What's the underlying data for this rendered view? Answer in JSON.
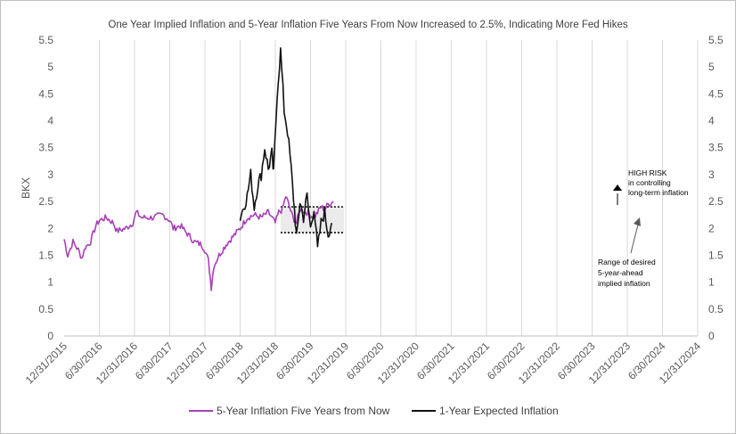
{
  "chart_data": {
    "type": "line",
    "title": "One Year Implied Inflation and 5-Year Inflation Five Years From Now Increased to 2.5%, Indicating More Fed Hikes",
    "ylabel": "BKX",
    "xlabel": "",
    "ylim": [
      0,
      5.5
    ],
    "y_ticks": [
      "0",
      "0.5",
      "1",
      "1.5",
      "2",
      "2.5",
      "3",
      "3.5",
      "4",
      "4.5",
      "5",
      "5.5"
    ],
    "x_ticks": [
      "12/31/2015",
      "6/30/2016",
      "12/31/2016",
      "6/30/2017",
      "12/31/2017",
      "6/30/2018",
      "12/31/2018",
      "6/30/2019",
      "12/31/2019",
      "6/30/2020",
      "12/31/2020",
      "6/30/2021",
      "12/31/2021",
      "6/30/2022",
      "12/31/2022",
      "6/30/2023",
      "12/31/2023",
      "6/30/2024",
      "12/31/2024"
    ],
    "grid": "vertical",
    "legend_position": "bottom",
    "series": [
      {
        "name": "5-Year Inflation Five Years from Now",
        "color": "#a83fb8",
        "points": [
          [
            0.0,
            1.8
          ],
          [
            0.1,
            1.5
          ],
          [
            0.25,
            1.75
          ],
          [
            0.4,
            1.6
          ],
          [
            0.5,
            1.45
          ],
          [
            0.6,
            1.65
          ],
          [
            0.75,
            1.75
          ],
          [
            0.9,
            2.05
          ],
          [
            1.0,
            2.15
          ],
          [
            1.2,
            2.2
          ],
          [
            1.4,
            2.1
          ],
          [
            1.5,
            1.95
          ],
          [
            1.75,
            2.0
          ],
          [
            1.95,
            2.1
          ],
          [
            2.05,
            2.3
          ],
          [
            2.2,
            2.2
          ],
          [
            2.5,
            2.2
          ],
          [
            2.8,
            2.25
          ],
          [
            3.0,
            2.15
          ],
          [
            3.1,
            2.0
          ],
          [
            3.3,
            2.05
          ],
          [
            3.5,
            1.9
          ],
          [
            3.7,
            1.75
          ],
          [
            3.9,
            1.7
          ],
          [
            4.0,
            1.6
          ],
          [
            4.1,
            1.4
          ],
          [
            4.18,
            0.9
          ],
          [
            4.25,
            1.3
          ],
          [
            4.4,
            1.5
          ],
          [
            4.6,
            1.7
          ],
          [
            4.8,
            1.85
          ],
          [
            5.0,
            2.0
          ],
          [
            5.2,
            2.2
          ],
          [
            5.4,
            2.25
          ],
          [
            5.6,
            2.2
          ],
          [
            5.8,
            2.3
          ],
          [
            6.0,
            2.1
          ],
          [
            6.1,
            2.3
          ],
          [
            6.2,
            2.35
          ],
          [
            6.3,
            2.6
          ],
          [
            6.4,
            2.4
          ],
          [
            6.5,
            2.2
          ],
          [
            6.6,
            2.1
          ],
          [
            6.7,
            2.35
          ],
          [
            6.9,
            2.3
          ],
          [
            7.1,
            2.2
          ],
          [
            7.3,
            2.4
          ],
          [
            7.4,
            2.35
          ],
          [
            7.5,
            2.45
          ],
          [
            7.65,
            2.5
          ]
        ]
      },
      {
        "name": "1-Year Expected Inflation",
        "color": "#111111",
        "points": [
          [
            5.0,
            2.2
          ],
          [
            5.1,
            2.4
          ],
          [
            5.2,
            2.6
          ],
          [
            5.3,
            3.0
          ],
          [
            5.4,
            2.4
          ],
          [
            5.5,
            2.8
          ],
          [
            5.6,
            3.0
          ],
          [
            5.7,
            3.5
          ],
          [
            5.8,
            3.1
          ],
          [
            5.9,
            3.4
          ],
          [
            5.95,
            3.0
          ],
          [
            6.05,
            4.5
          ],
          [
            6.15,
            5.3
          ],
          [
            6.25,
            4.2
          ],
          [
            6.35,
            3.8
          ],
          [
            6.45,
            3.1
          ],
          [
            6.55,
            2.3
          ],
          [
            6.6,
            1.8
          ],
          [
            6.7,
            2.5
          ],
          [
            6.8,
            2.2
          ],
          [
            6.9,
            2.6
          ],
          [
            7.0,
            2.0
          ],
          [
            7.1,
            2.4
          ],
          [
            7.2,
            1.6
          ],
          [
            7.3,
            2.1
          ],
          [
            7.4,
            2.3
          ],
          [
            7.5,
            1.9
          ],
          [
            7.6,
            2.1
          ]
        ]
      }
    ],
    "annotations": [
      {
        "text_lines": [
          "HIGH RISK",
          "in controlling",
          "long-term inflation"
        ]
      },
      {
        "text_lines": [
          "Range of desired",
          "5-year-ahead",
          "implied inflation"
        ]
      }
    ],
    "reference_lines": [
      2.4,
      1.92
    ]
  }
}
